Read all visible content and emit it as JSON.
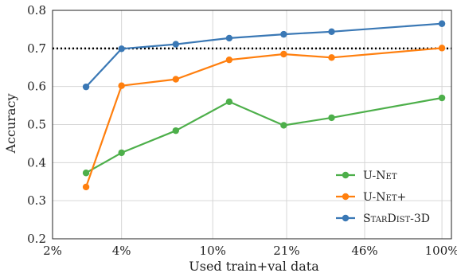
{
  "chart_data": {
    "type": "line",
    "xlabel": "Used train+val data",
    "ylabel": "Accuracy",
    "x_ticks": [
      {
        "label": "2%",
        "value": 2
      },
      {
        "label": "4%",
        "value": 4
      },
      {
        "label": "10%",
        "value": 10
      },
      {
        "label": "21%",
        "value": 21
      },
      {
        "label": "46%",
        "value": 46
      },
      {
        "label": "100%",
        "value": 100
      }
    ],
    "y_ticks": [
      {
        "label": "0.2",
        "value": 0.2
      },
      {
        "label": "0.3",
        "value": 0.3
      },
      {
        "label": "0.4",
        "value": 0.4
      },
      {
        "label": "0.5",
        "value": 0.5
      },
      {
        "label": "0.6",
        "value": 0.6
      },
      {
        "label": "0.7",
        "value": 0.7
      },
      {
        "label": "0.8",
        "value": 0.8
      }
    ],
    "xscale": "log",
    "xlim": [
      2,
      110
    ],
    "ylim": [
      0.2,
      0.8
    ],
    "x": [
      2.8,
      4.0,
      6.9,
      11.8,
      20.4,
      33.0,
      100
    ],
    "grid": true,
    "reference_line": {
      "y": 0.7,
      "style": "dotted",
      "color": "#000000"
    },
    "legend_position": "bottom-right",
    "series": [
      {
        "name": "U-Net",
        "color": "#4daf4a",
        "values": [
          0.373,
          0.426,
          0.484,
          0.56,
          0.498,
          0.518,
          0.57
        ]
      },
      {
        "name": "U-Net+",
        "color": "#ff7f0e",
        "values": [
          0.336,
          0.602,
          0.619,
          0.67,
          0.685,
          0.676,
          0.701
        ]
      },
      {
        "name": "StarDist-3D",
        "color": "#3a78b5",
        "values": [
          0.599,
          0.699,
          0.711,
          0.727,
          0.737,
          0.744,
          0.765
        ]
      }
    ]
  }
}
